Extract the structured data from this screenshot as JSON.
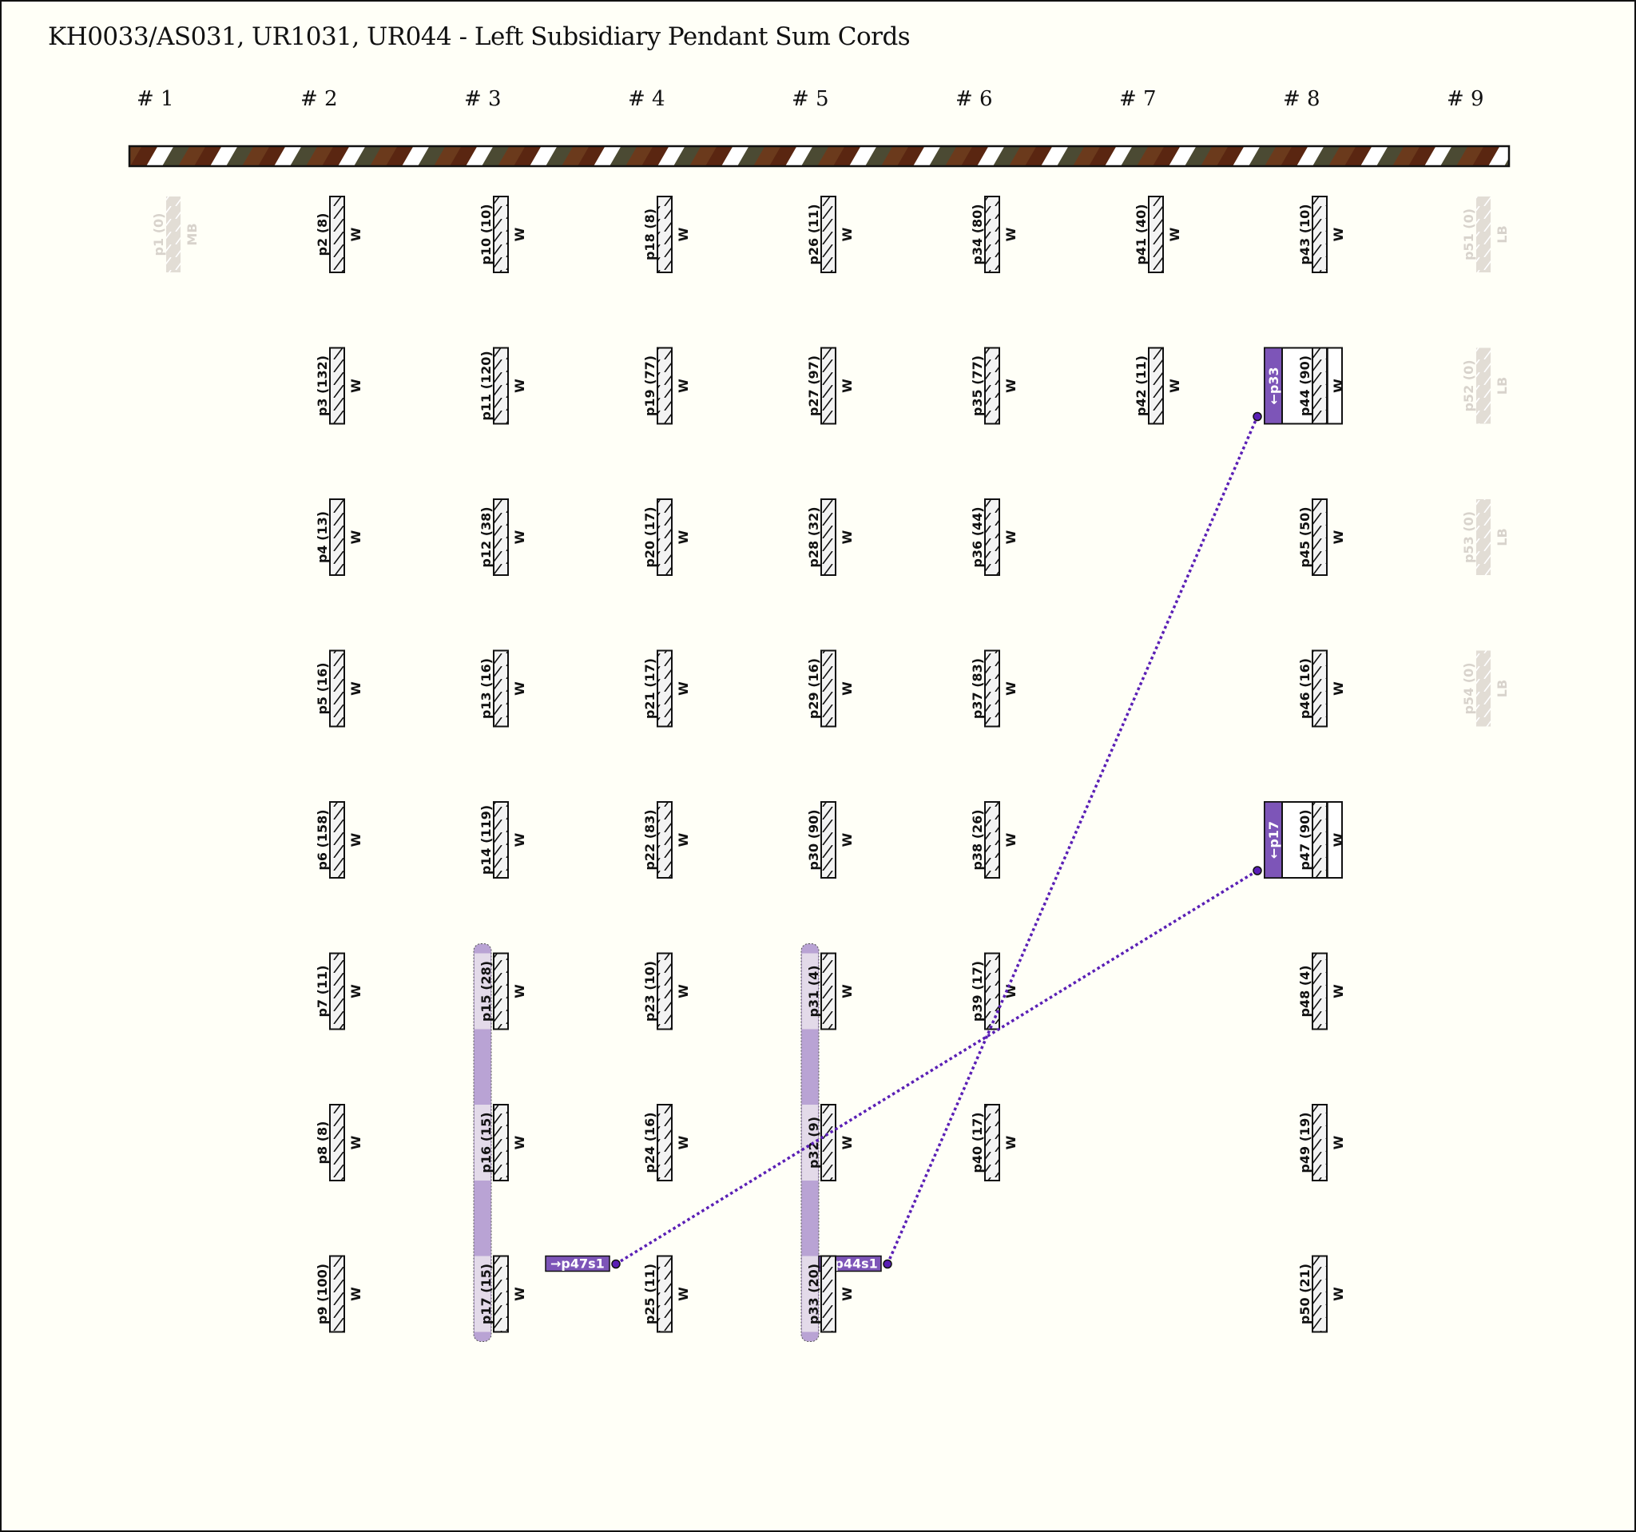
{
  "title": "KH0033/AS031, UR1031, UR044 - Left Subsidiary Pendant Sum Cords",
  "colors": {
    "background": "#fffff7",
    "cord_fill": "#f3f3f3",
    "ghost_cord": "#e2ddd5",
    "ghost_text": "#d8d3cc",
    "sum_purple": "#7d55b8",
    "sum_bar": "#b9a3d4",
    "sum_bar_light": "#e3dae9",
    "link_line": "#5a1fb5",
    "main_cord_stripes": [
      "#4b4a33",
      "#6b3a1c",
      "#5a2611",
      "#ffffff"
    ]
  },
  "groups": [
    {
      "label": "# 1",
      "cords": [
        {
          "name": "p1 (0)",
          "color": "MB",
          "ghost": true
        }
      ]
    },
    {
      "label": "# 2",
      "cords": [
        {
          "name": "p2 (8)",
          "color": "W"
        },
        {
          "name": "p3 (132)",
          "color": "W"
        },
        {
          "name": "p4 (13)",
          "color": "W"
        },
        {
          "name": "p5 (16)",
          "color": "W"
        },
        {
          "name": "p6 (158)",
          "color": "W"
        },
        {
          "name": "p7 (11)",
          "color": "W"
        },
        {
          "name": "p8 (8)",
          "color": "W"
        },
        {
          "name": "p9 (100)",
          "color": "W"
        }
      ]
    },
    {
      "label": "# 3",
      "cords": [
        {
          "name": "p10 (10)",
          "color": "W"
        },
        {
          "name": "p11 (120)",
          "color": "W"
        },
        {
          "name": "p12 (38)",
          "color": "W"
        },
        {
          "name": "p13 (16)",
          "color": "W"
        },
        {
          "name": "p14 (119)",
          "color": "W"
        },
        {
          "name": "p15 (28)",
          "color": "W"
        },
        {
          "name": "p16 (15)",
          "color": "W"
        },
        {
          "name": "p17 (15)",
          "color": "W"
        }
      ],
      "sum_group": {
        "from_row": 5,
        "to_row": 7,
        "label": "→p47s1"
      }
    },
    {
      "label": "# 4",
      "cords": [
        {
          "name": "p18 (8)",
          "color": "W"
        },
        {
          "name": "p19 (77)",
          "color": "W"
        },
        {
          "name": "p20 (17)",
          "color": "W"
        },
        {
          "name": "p21 (17)",
          "color": "W"
        },
        {
          "name": "p22 (83)",
          "color": "W"
        },
        {
          "name": "p23 (10)",
          "color": "W"
        },
        {
          "name": "p24 (16)",
          "color": "W"
        },
        {
          "name": "p25 (11)",
          "color": "W"
        }
      ]
    },
    {
      "label": "# 5",
      "cords": [
        {
          "name": "p26 (11)",
          "color": "W"
        },
        {
          "name": "p27 (97)",
          "color": "W"
        },
        {
          "name": "p28 (32)",
          "color": "W"
        },
        {
          "name": "p29 (16)",
          "color": "W"
        },
        {
          "name": "p30 (90)",
          "color": "W"
        },
        {
          "name": "p31 (4)",
          "color": "W"
        },
        {
          "name": "p32 (9)",
          "color": "W"
        },
        {
          "name": "p33 (20)",
          "color": "W"
        }
      ],
      "sum_group": {
        "from_row": 5,
        "to_row": 7,
        "label": "→p44s1"
      }
    },
    {
      "label": "# 6",
      "cords": [
        {
          "name": "p34 (80)",
          "color": "W"
        },
        {
          "name": "p35 (77)",
          "color": "W"
        },
        {
          "name": "p36 (44)",
          "color": "W"
        },
        {
          "name": "p37 (83)",
          "color": "W"
        },
        {
          "name": "p38 (26)",
          "color": "W"
        },
        {
          "name": "p39 (17)",
          "color": "W"
        },
        {
          "name": "p40 (17)",
          "color": "W"
        }
      ]
    },
    {
      "label": "# 7",
      "cords": [
        {
          "name": "p41 (40)",
          "color": "W"
        },
        {
          "name": "p42 (11)",
          "color": "W"
        }
      ]
    },
    {
      "label": "# 8",
      "cords": [
        {
          "name": "p43 (10)",
          "color": "W"
        },
        {
          "name": "p44 (90)",
          "color": "W",
          "sum_of": "←p33"
        },
        {
          "name": "p45 (50)",
          "color": "W"
        },
        {
          "name": "p46 (16)",
          "color": "W"
        },
        {
          "name": "p47 (90)",
          "color": "W",
          "sum_of": "←p17"
        },
        {
          "name": "p48 (4)",
          "color": "W"
        },
        {
          "name": "p49 (19)",
          "color": "W"
        },
        {
          "name": "p50 (21)",
          "color": "W"
        }
      ]
    },
    {
      "label": "# 9",
      "cords": [
        {
          "name": "p51 (0)",
          "color": "LB",
          "ghost": true
        },
        {
          "name": "p52 (0)",
          "color": "LB",
          "ghost": true
        },
        {
          "name": "p53 (0)",
          "color": "LB",
          "ghost": true
        },
        {
          "name": "p54 (0)",
          "color": "LB",
          "ghost": true
        }
      ]
    }
  ],
  "links": [
    {
      "from_group": 3,
      "to_group": 8,
      "to_row": 4
    },
    {
      "from_group": 5,
      "to_group": 8,
      "to_row": 1
    }
  ]
}
